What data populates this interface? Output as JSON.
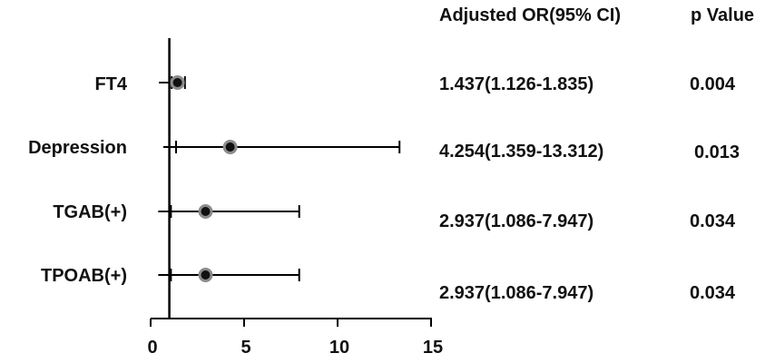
{
  "chart_data": {
    "type": "forest",
    "title": "",
    "xlabel": "",
    "ylabel": "",
    "xlim": [
      0,
      15
    ],
    "xticks": [
      0,
      5,
      10,
      15
    ],
    "reference_line": 1,
    "columns": {
      "or_header": "Adjusted OR(95% CI)",
      "p_header": "p Value"
    },
    "rows": [
      {
        "label": "FT4",
        "or": 1.437,
        "lower": 1.126,
        "upper": 1.835,
        "or_text": "1.437(1.126-1.835)",
        "p": "0.004"
      },
      {
        "label": "Depression",
        "or": 4.254,
        "lower": 1.359,
        "upper": 13.312,
        "or_text": "4.254(1.359-13.312)",
        "p": "0.013"
      },
      {
        "label": "TGAB(+)",
        "or": 2.937,
        "lower": 1.086,
        "upper": 7.947,
        "or_text": "2.937(1.086-7.947)",
        "p": "0.034"
      },
      {
        "label": "TPOAB(+)",
        "or": 2.937,
        "lower": 1.086,
        "upper": 7.947,
        "or_text": "2.937(1.086-7.947)",
        "p": "0.034"
      }
    ]
  }
}
